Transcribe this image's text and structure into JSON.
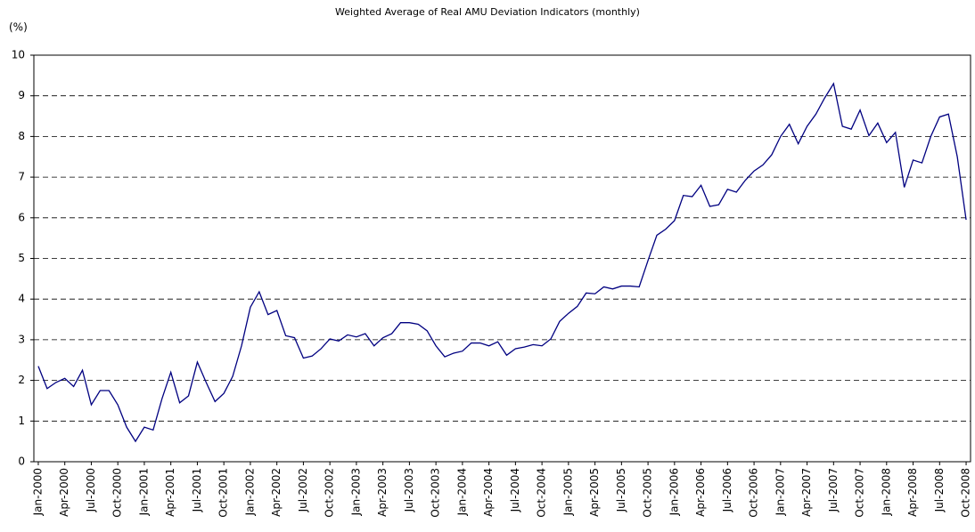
{
  "chart_data": {
    "type": "line",
    "title": "Weighted Average of Real AMU Deviation Indicators (monthly)",
    "y_label": "(%)",
    "categories": [
      "Jan-2000",
      null,
      null,
      "Apr-2000",
      null,
      null,
      "Jul-2000",
      null,
      null,
      "Oct-2000",
      null,
      null,
      "Jan-2001",
      null,
      null,
      "Apr-2001",
      null,
      null,
      "Jul-2001",
      null,
      null,
      "Oct-2001",
      null,
      null,
      "Jan-2002",
      null,
      null,
      "Apr-2002",
      null,
      null,
      "Jul-2002",
      null,
      null,
      "Oct-2002",
      null,
      null,
      "Jan-2003",
      null,
      null,
      "Apr-2003",
      null,
      null,
      "Jul-2003",
      null,
      null,
      "Oct-2003",
      null,
      null,
      "Jan-2004",
      null,
      null,
      "Apr-2004",
      null,
      null,
      "Jul-2004",
      null,
      null,
      "Oct-2004",
      null,
      null,
      "Jan-2005",
      null,
      null,
      "Apr-2005",
      null,
      null,
      "Jul-2005",
      null,
      null,
      "Oct-2005",
      null,
      null,
      "Jan-2006",
      null,
      null,
      "Apr-2006",
      null,
      null,
      "Jul-2006",
      null,
      null,
      "Oct-2006",
      null,
      null,
      "Jan-2007",
      null,
      null,
      "Apr-2007",
      null,
      null,
      "Jul-2007",
      null,
      null,
      "Oct-2007",
      null,
      null,
      "Jan-2008",
      null,
      null,
      "Apr-2008",
      null,
      null,
      "Jul-2008",
      null,
      null,
      "Oct-2008"
    ],
    "values": [
      2.35,
      1.8,
      1.95,
      2.05,
      1.85,
      2.25,
      1.4,
      1.75,
      1.75,
      1.4,
      0.85,
      0.5,
      0.85,
      0.78,
      1.55,
      2.2,
      1.45,
      1.62,
      2.45,
      1.95,
      1.48,
      1.68,
      2.1,
      2.85,
      3.8,
      4.18,
      3.62,
      3.72,
      3.1,
      3.05,
      2.55,
      2.6,
      2.78,
      3.02,
      2.97,
      3.12,
      3.07,
      3.15,
      2.85,
      3.05,
      3.15,
      3.42,
      3.42,
      3.38,
      3.22,
      2.85,
      2.58,
      2.67,
      2.72,
      2.92,
      2.92,
      2.85,
      2.95,
      2.62,
      2.78,
      2.82,
      2.88,
      2.85,
      3.02,
      3.45,
      3.65,
      3.82,
      4.15,
      4.13,
      4.3,
      4.25,
      4.32,
      4.32,
      4.3,
      4.95,
      5.57,
      5.72,
      5.93,
      6.55,
      6.52,
      6.8,
      6.28,
      6.32,
      6.7,
      6.63,
      6.92,
      7.15,
      7.3,
      7.55,
      8.0,
      8.3,
      7.82,
      8.25,
      8.55,
      8.95,
      9.3,
      8.25,
      8.18,
      8.65,
      8.02,
      8.33,
      7.85,
      8.1,
      6.75,
      7.42,
      7.35,
      8.0,
      8.48,
      8.55,
      7.5,
      5.95
    ],
    "color": "#000080",
    "ylim": [
      0,
      10
    ],
    "yticks": [
      0,
      1,
      2,
      3,
      4,
      5,
      6,
      7,
      8,
      9,
      10
    ],
    "grid": true
  }
}
